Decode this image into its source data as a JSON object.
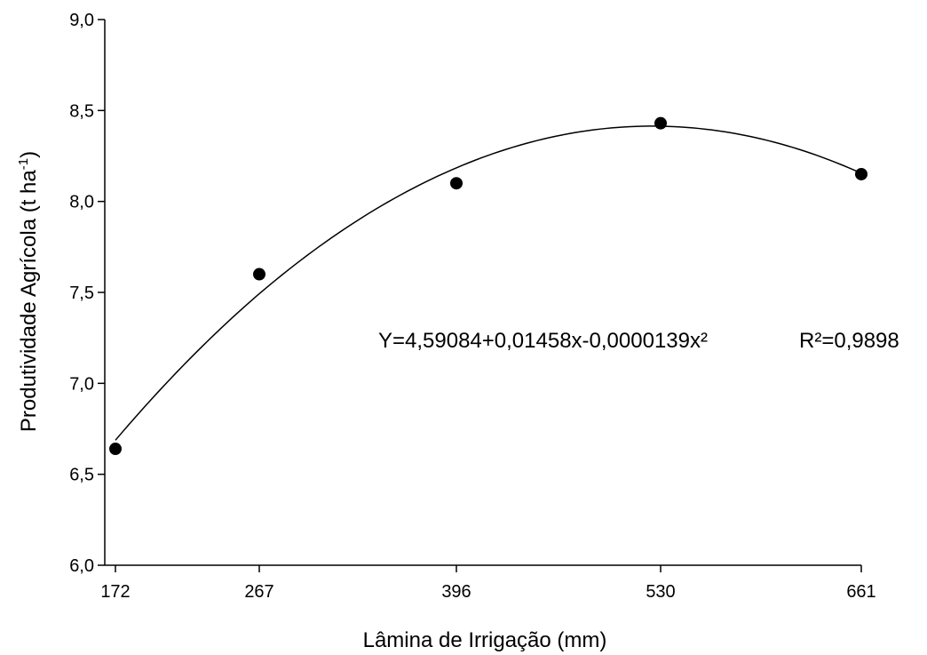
{
  "chart_data": {
    "type": "scatter",
    "xlabel": "Lâmina de Irrigação (mm)",
    "ylabel_main": "Produtividade Agrícola (t ha",
    "ylabel_sup": "-1",
    "ylabel_close": ")",
    "ylim": [
      6.0,
      9.0
    ],
    "xlim": [
      172,
      661
    ],
    "x_ticks": [
      172,
      267,
      396,
      530,
      661
    ],
    "x_tick_labels": [
      "172",
      "267",
      "396",
      "530",
      "661"
    ],
    "y_ticks": [
      6.0,
      6.5,
      7.0,
      7.5,
      8.0,
      8.5,
      9.0
    ],
    "y_tick_labels": [
      "6,0",
      "6,5",
      "7,0",
      "7,5",
      "8,0",
      "8,5",
      "9,0"
    ],
    "series": [
      {
        "points": [
          {
            "x": 172,
            "y": 6.64
          },
          {
            "x": 267,
            "y": 7.6
          },
          {
            "x": 396,
            "y": 8.1
          },
          {
            "x": 530,
            "y": 8.43
          },
          {
            "x": 661,
            "y": 8.15
          }
        ],
        "marker_color": "#000000"
      }
    ],
    "fit": {
      "coefficients": [
        4.59084,
        0.01458,
        -1.39e-05
      ],
      "equation_text": "Y=4,59084+0,01458x-0,0000139x²",
      "r2_text": "R²=0,9898",
      "line_color": "#000000"
    },
    "grid": false,
    "legend": "none"
  }
}
